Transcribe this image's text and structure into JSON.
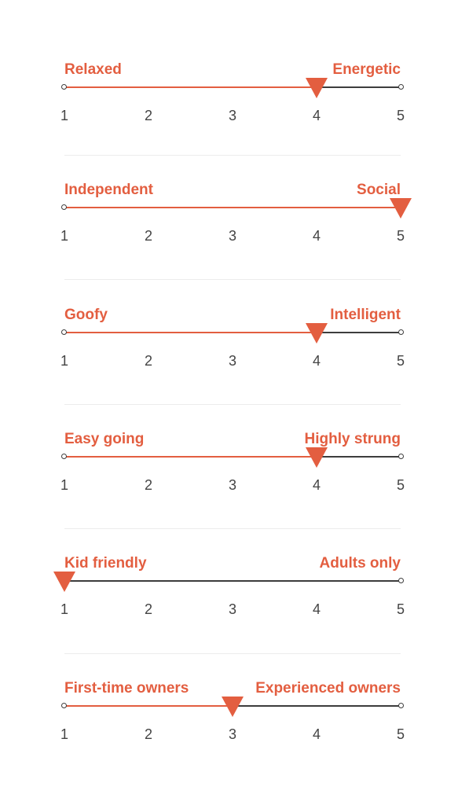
{
  "colors": {
    "accent": "#e35e40",
    "track": "#3d3d3d",
    "tick_text": "#444444",
    "divider": "#ececec"
  },
  "scale_ticks": [
    "1",
    "2",
    "3",
    "4",
    "5"
  ],
  "scales": [
    {
      "left_label": "Relaxed",
      "right_label": "Energetic",
      "value": 4,
      "min": 1,
      "max": 5
    },
    {
      "left_label": "Independent",
      "right_label": "Social",
      "value": 5,
      "min": 1,
      "max": 5
    },
    {
      "left_label": "Goofy",
      "right_label": "Intelligent",
      "value": 4,
      "min": 1,
      "max": 5
    },
    {
      "left_label": "Easy going",
      "right_label": "Highly strung",
      "value": 4,
      "min": 1,
      "max": 5
    },
    {
      "left_label": "Kid friendly",
      "right_label": "Adults only",
      "value": 1,
      "min": 1,
      "max": 5
    },
    {
      "left_label": "First-time owners",
      "right_label": "Experienced owners",
      "value": 3,
      "min": 1,
      "max": 5
    }
  ]
}
